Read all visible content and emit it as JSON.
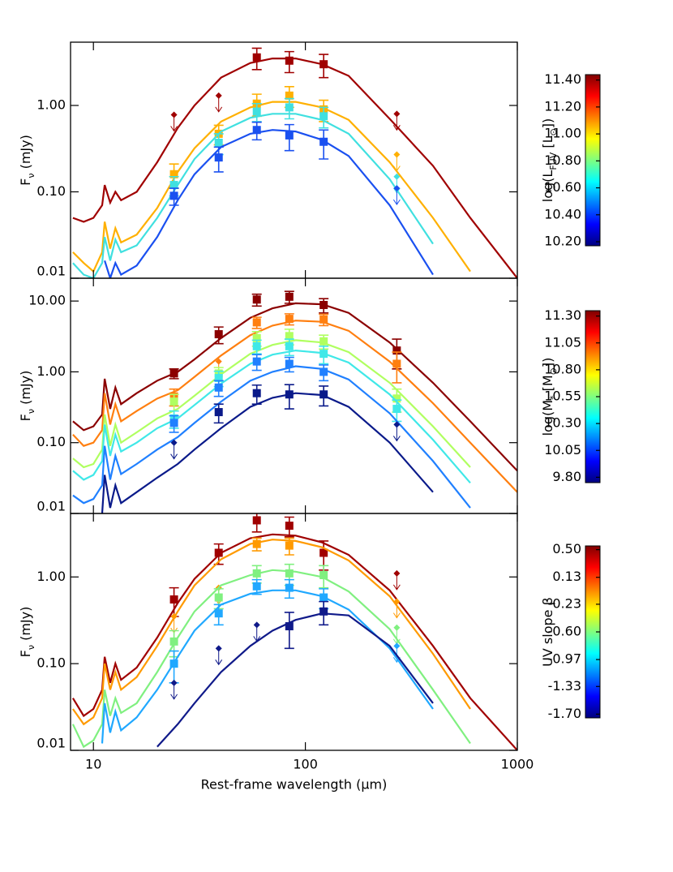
{
  "chart_data": [
    {
      "type": "line",
      "log_x": true,
      "log_y": true,
      "ylabel": [
        {
          "text": "F"
        },
        {
          "text": "ν",
          "sub": true
        },
        {
          "text": " (mJy)"
        }
      ],
      "xlim": [
        7.8,
        1000
      ],
      "ylim": [
        0.01,
        5.4
      ],
      "yticks": [
        {
          "value": 1,
          "label": "1.00"
        },
        {
          "value": 0.1,
          "label": "0.10"
        },
        0.01
      ],
      "curve_x": [
        8,
        9,
        10,
        11,
        11.3,
        12,
        12.7,
        13.5,
        16,
        20,
        25,
        30,
        40,
        55,
        70,
        90,
        120,
        160,
        250,
        400,
        600,
        1000
      ],
      "point_x": [
        24,
        39,
        59,
        84,
        122,
        270
      ],
      "series": [
        {
          "color": "#a00000",
          "values": [
            0.05,
            0.045,
            0.05,
            0.07,
            0.12,
            0.075,
            0.1,
            0.08,
            0.1,
            0.22,
            0.55,
            1.0,
            2.1,
            3.1,
            3.5,
            3.5,
            3.0,
            2.2,
            0.7,
            0.2,
            0.05,
            0.01
          ],
          "point_values": [
            null,
            null,
            3.6,
            3.3,
            3.0,
            null
          ],
          "point_errors": [
            null,
            null,
            1.0,
            0.9,
            0.9,
            null
          ],
          "limit_values": [
            0.78,
            1.3,
            null,
            null,
            null,
            0.8
          ]
        },
        {
          "color": "#ffb000",
          "values": [
            0.02,
            0.015,
            0.012,
            0.02,
            0.045,
            0.022,
            0.038,
            0.026,
            0.032,
            0.065,
            0.17,
            0.32,
            0.65,
            0.95,
            1.1,
            1.1,
            0.95,
            0.68,
            0.22,
            0.05,
            0.012,
            null
          ],
          "point_values": [
            0.16,
            0.47,
            1.05,
            1.3,
            0.9,
            null
          ],
          "point_errors": [
            0.05,
            0.12,
            0.3,
            0.35,
            0.25,
            null
          ],
          "limit_values": [
            null,
            null,
            null,
            null,
            null,
            0.27
          ]
        },
        {
          "color": "#40e0e0",
          "values": [
            0.015,
            0.011,
            0.01,
            0.015,
            0.03,
            0.016,
            0.028,
            0.02,
            0.024,
            0.05,
            0.12,
            0.24,
            0.5,
            0.72,
            0.8,
            0.8,
            0.68,
            0.47,
            0.14,
            0.025,
            null,
            null
          ],
          "point_values": [
            0.12,
            0.37,
            0.85,
            0.95,
            0.75,
            null
          ],
          "point_errors": [
            0.03,
            0.1,
            0.2,
            0.25,
            0.2,
            null
          ],
          "limit_values": [
            null,
            null,
            null,
            null,
            null,
            0.15
          ]
        },
        {
          "color": "#1a50f0",
          "values": [
            null,
            null,
            null,
            null,
            0.016,
            0.01,
            0.015,
            0.011,
            0.014,
            0.03,
            0.08,
            0.16,
            0.33,
            0.47,
            0.52,
            0.5,
            0.4,
            0.26,
            0.07,
            0.011,
            null,
            null
          ],
          "point_values": [
            0.09,
            0.25,
            0.52,
            0.45,
            0.38,
            null
          ],
          "point_errors": [
            0.02,
            0.08,
            0.12,
            0.15,
            0.14,
            null
          ],
          "limit_values": [
            null,
            null,
            null,
            null,
            null,
            0.11
          ]
        }
      ],
      "colorbar": {
        "label": [
          {
            "text": "log(L"
          },
          {
            "text": "FUV",
            "sub": true
          },
          {
            "text": " [L"
          },
          {
            "text": "⊙",
            "sub": true
          },
          {
            "text": "])"
          }
        ],
        "lim": [
          10.17,
          11.44
        ],
        "ticks": [
          {
            "value": 11.4,
            "label": "11.40"
          },
          {
            "value": 11.2,
            "label": "11.20"
          },
          {
            "value": 11.0,
            "label": "11.00"
          },
          {
            "value": 10.8,
            "label": "10.80"
          },
          {
            "value": 10.6,
            "label": "10.60"
          },
          {
            "value": 10.4,
            "label": "10.40"
          },
          {
            "value": 10.2,
            "label": "10.20"
          }
        ],
        "colors": [
          "#00007f",
          "#0000ff",
          "#007fff",
          "#00ffff",
          "#7fff7f",
          "#ffff00",
          "#ff7f00",
          "#ff0000",
          "#7f0000"
        ]
      }
    },
    {
      "type": "line",
      "log_x": true,
      "log_y": true,
      "ylabel": [
        {
          "text": "F"
        },
        {
          "text": "ν",
          "sub": true
        },
        {
          "text": " (mJy)"
        }
      ],
      "xlim": [
        7.8,
        1000
      ],
      "ylim": [
        0.01,
        21
      ],
      "yticks": [
        {
          "value": 10,
          "label": "10.00"
        },
        {
          "value": 1,
          "label": "1.00"
        },
        {
          "value": 0.1,
          "label": "0.10"
        },
        0.01
      ],
      "curve_x": [
        8,
        9,
        10,
        11,
        11.3,
        12,
        12.7,
        13.5,
        16,
        20,
        25,
        30,
        40,
        55,
        70,
        90,
        120,
        160,
        250,
        400,
        600,
        1000
      ],
      "point_x": [
        24,
        39,
        59,
        84,
        122,
        270
      ],
      "series": [
        {
          "color": "#8b0000",
          "values": [
            0.2,
            0.15,
            0.17,
            0.25,
            0.8,
            0.3,
            0.6,
            0.35,
            0.5,
            0.75,
            1.0,
            1.5,
            3.0,
            5.8,
            7.9,
            9.3,
            9.0,
            6.8,
            2.6,
            0.7,
            0.2,
            0.04
          ],
          "point_values": [
            0.95,
            3.4,
            10.5,
            11.5,
            8.8,
            2.0
          ],
          "point_errors": [
            0.15,
            0.9,
            2.0,
            2.2,
            2.0,
            0.9
          ],
          "limit_values": [
            null,
            null,
            null,
            null,
            null,
            null
          ]
        },
        {
          "color": "#ff7f10",
          "values": [
            0.13,
            0.09,
            0.1,
            0.15,
            0.5,
            0.18,
            0.35,
            0.2,
            0.28,
            0.42,
            0.55,
            0.85,
            1.7,
            3.3,
            4.5,
            5.3,
            5.1,
            3.8,
            1.4,
            0.36,
            0.1,
            0.02
          ],
          "point_values": [
            0.45,
            null,
            5.0,
            5.6,
            5.5,
            1.3
          ],
          "point_errors": [
            0.12,
            null,
            0.9,
            1.0,
            1.0,
            0.6
          ],
          "limit_values": [
            null,
            1.4,
            null,
            null,
            null,
            null
          ]
        },
        {
          "color": "#b0ff60",
          "values": [
            0.06,
            0.045,
            0.05,
            0.08,
            0.25,
            0.09,
            0.18,
            0.1,
            0.14,
            0.22,
            0.3,
            0.46,
            0.92,
            1.8,
            2.4,
            2.8,
            2.6,
            1.9,
            0.7,
            0.17,
            0.045,
            null
          ],
          "point_values": [
            0.38,
            0.95,
            3.0,
            3.2,
            2.7,
            0.42
          ],
          "point_errors": [
            0.1,
            0.2,
            0.7,
            0.8,
            0.6,
            0.15
          ],
          "limit_values": [
            null,
            null,
            null,
            null,
            null,
            null
          ]
        },
        {
          "color": "#40e8e8",
          "values": [
            0.04,
            0.03,
            0.035,
            0.055,
            0.18,
            0.065,
            0.13,
            0.075,
            0.1,
            0.16,
            0.22,
            0.34,
            0.68,
            1.3,
            1.75,
            2.0,
            1.85,
            1.35,
            0.48,
            0.11,
            0.027,
            null
          ],
          "point_values": [
            0.22,
            0.82,
            2.3,
            2.3,
            1.8,
            0.3
          ],
          "point_errors": [
            0.06,
            0.2,
            0.5,
            0.6,
            0.5,
            0.1
          ],
          "limit_values": [
            null,
            null,
            null,
            null,
            null,
            null
          ]
        },
        {
          "color": "#2080ff",
          "values": [
            0.018,
            0.014,
            0.016,
            0.025,
            0.09,
            0.03,
            0.065,
            0.036,
            0.05,
            0.08,
            0.12,
            0.19,
            0.38,
            0.75,
            1.0,
            1.2,
            1.1,
            0.78,
            0.26,
            0.055,
            0.012,
            null
          ],
          "point_values": [
            0.19,
            0.6,
            1.4,
            1.3,
            1.0,
            null
          ],
          "point_errors": [
            0.05,
            0.15,
            0.35,
            0.3,
            0.25,
            null
          ],
          "limit_values": [
            null,
            null,
            null,
            null,
            null,
            null
          ]
        },
        {
          "color": "#0a1a8a",
          "values": [
            null,
            null,
            null,
            0.01,
            0.035,
            0.012,
            0.025,
            0.014,
            0.02,
            0.032,
            0.05,
            0.08,
            0.16,
            0.32,
            0.43,
            0.5,
            0.47,
            0.32,
            0.1,
            0.02,
            null,
            null
          ],
          "point_values": [
            null,
            0.27,
            0.5,
            0.48,
            0.48,
            null
          ],
          "point_errors": [
            null,
            0.08,
            0.15,
            0.18,
            0.15,
            null
          ],
          "limit_values": [
            0.1,
            null,
            null,
            null,
            null,
            0.18
          ]
        }
      ],
      "colorbar": {
        "label": [
          {
            "text": "log(M"
          },
          {
            "text": "*",
            "sub": true
          },
          {
            "text": " [M"
          },
          {
            "text": "⊙",
            "sub": true
          },
          {
            "text": "])"
          }
        ],
        "lim": [
          9.75,
          11.35
        ],
        "ticks": [
          {
            "value": 11.3,
            "label": "11.30"
          },
          11.05,
          {
            "value": 10.8,
            "label": "10.80"
          },
          10.55,
          {
            "value": 10.3,
            "label": "10.30"
          },
          10.05,
          {
            "value": 9.8,
            "label": "9.80"
          }
        ],
        "colors": [
          "#00007f",
          "#0000ff",
          "#007fff",
          "#00ffff",
          "#7fff7f",
          "#ffff00",
          "#ff7f00",
          "#ff0000",
          "#7f0000"
        ]
      }
    },
    {
      "type": "line",
      "log_x": true,
      "log_y": true,
      "ylabel": [
        {
          "text": "F"
        },
        {
          "text": "ν",
          "sub": true
        },
        {
          "text": " (mJy)"
        }
      ],
      "xlabel": "Rest-frame wavelength (μm)",
      "xlim": [
        7.8,
        1000
      ],
      "ylim": [
        0.01,
        5.4
      ],
      "xticks": [
        10,
        100,
        1000
      ],
      "yticks": [
        {
          "value": 1,
          "label": "1.00"
        },
        {
          "value": 0.1,
          "label": "0.10"
        },
        0.01
      ],
      "curve_x": [
        8,
        9,
        10,
        11,
        11.3,
        12,
        12.7,
        13.5,
        16,
        20,
        25,
        30,
        40,
        55,
        70,
        90,
        120,
        160,
        250,
        400,
        600,
        1000
      ],
      "point_x": [
        24,
        39,
        59,
        84,
        122,
        270
      ],
      "series": [
        {
          "color": "#a00000",
          "values": [
            0.04,
            0.025,
            0.03,
            0.05,
            0.12,
            0.06,
            0.1,
            0.065,
            0.09,
            0.2,
            0.5,
            0.95,
            1.9,
            2.8,
            3.1,
            3.0,
            2.5,
            1.8,
            0.7,
            0.16,
            0.04,
            0.01
          ],
          "point_values": [
            0.55,
            1.9,
            4.5,
            3.9,
            1.9,
            null
          ],
          "point_errors": [
            0.2,
            0.5,
            1.2,
            1.0,
            0.7,
            null
          ],
          "limit_values": [
            null,
            null,
            null,
            null,
            null,
            1.1
          ]
        },
        {
          "color": "#ff9a00",
          "values": [
            0.03,
            0.02,
            0.024,
            0.04,
            0.1,
            0.05,
            0.08,
            0.05,
            0.07,
            0.16,
            0.4,
            0.8,
            1.6,
            2.4,
            2.7,
            2.6,
            2.2,
            1.55,
            0.6,
            0.13,
            0.03,
            null
          ],
          "point_values": [
            null,
            null,
            2.4,
            2.3,
            null,
            null
          ],
          "point_errors": [
            null,
            null,
            0.4,
            0.5,
            null,
            null
          ],
          "limit_values": [
            0.35,
            0.75,
            null,
            null,
            null,
            0.52
          ]
        },
        {
          "color": "#80f080",
          "values": [
            0.02,
            0.011,
            0.013,
            0.02,
            0.05,
            0.025,
            0.04,
            0.027,
            0.035,
            0.08,
            0.2,
            0.4,
            0.8,
            1.05,
            1.2,
            1.15,
            1.0,
            0.68,
            0.25,
            0.05,
            0.012,
            null
          ],
          "point_values": [
            0.18,
            0.58,
            1.1,
            1.1,
            1.05,
            null
          ],
          "point_errors": [
            0.06,
            0.15,
            0.25,
            0.3,
            0.3,
            null
          ],
          "limit_values": [
            null,
            null,
            null,
            null,
            null,
            0.26
          ]
        },
        {
          "color": "#20a8ff",
          "values": [
            0.011,
            null,
            null,
            0.012,
            0.035,
            0.016,
            0.028,
            0.017,
            0.024,
            0.05,
            0.12,
            0.24,
            0.48,
            0.64,
            0.7,
            0.7,
            0.6,
            0.42,
            0.15,
            0.03,
            null,
            null
          ],
          "point_values": [
            0.1,
            0.38,
            0.78,
            0.75,
            0.58,
            null
          ],
          "point_errors": [
            0.04,
            0.1,
            0.15,
            0.18,
            0.15,
            null
          ],
          "limit_values": [
            null,
            null,
            null,
            null,
            null,
            0.16
          ]
        },
        {
          "color": "#101a8a",
          "values": [
            null,
            null,
            null,
            null,
            null,
            null,
            null,
            null,
            null,
            0.011,
            0.02,
            0.035,
            0.08,
            0.16,
            0.24,
            0.32,
            0.38,
            0.36,
            0.16,
            0.035,
            null,
            null
          ],
          "point_values": [
            null,
            null,
            null,
            0.27,
            0.4,
            null
          ],
          "point_errors": [
            null,
            null,
            null,
            0.12,
            0.12,
            null
          ],
          "limit_values": [
            0.06,
            0.15,
            0.28,
            null,
            null,
            null
          ]
        }
      ],
      "colorbar": {
        "label": [
          {
            "text": "UV slope β"
          }
        ],
        "lim": [
          -1.75,
          0.55
        ],
        "ticks": [
          {
            "value": 0.5,
            "label": "0.50"
          },
          0.13,
          -0.23,
          {
            "value": -0.6,
            "label": "-0.60"
          },
          -0.97,
          -1.33,
          {
            "value": -1.7,
            "label": "-1.70"
          }
        ],
        "colors": [
          "#00007f",
          "#0000ff",
          "#007fff",
          "#00ffff",
          "#7fff7f",
          "#ffff00",
          "#ff7f00",
          "#ff0000",
          "#7f0000"
        ]
      }
    }
  ]
}
